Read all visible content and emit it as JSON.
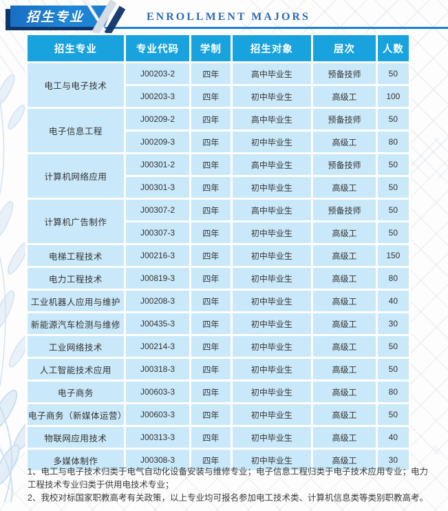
{
  "header": {
    "title": "招生专业",
    "subtitle": "ENROLLMENT MAJORS"
  },
  "table": {
    "columns": [
      "招生专业",
      "专业代码",
      "学制",
      "招生对象",
      "层次",
      "人数"
    ],
    "majors": [
      {
        "name": "电工与电子技术",
        "rows": [
          [
            "J00203-2",
            "四年",
            "高中毕业生",
            "预备技师",
            "50"
          ],
          [
            "J00203-3",
            "四年",
            "初中毕业生",
            "高级工",
            "100"
          ]
        ]
      },
      {
        "name": "电子信息工程",
        "rows": [
          [
            "J00209-2",
            "四年",
            "高中毕业生",
            "预备技师",
            "50"
          ],
          [
            "J00209-3",
            "四年",
            "初中毕业生",
            "高级工",
            "80"
          ]
        ]
      },
      {
        "name": "计算机网络应用",
        "rows": [
          [
            "J00301-2",
            "四年",
            "高中毕业生",
            "预备技师",
            "50"
          ],
          [
            "J00301-3",
            "四年",
            "初中毕业生",
            "高级工",
            "50"
          ]
        ]
      },
      {
        "name": "计算机广告制作",
        "rows": [
          [
            "J00307-2",
            "四年",
            "高中毕业生",
            "预备技师",
            "50"
          ],
          [
            "J00307-3",
            "四年",
            "初中毕业生",
            "高级工",
            "50"
          ]
        ]
      },
      {
        "name": "电梯工程技术",
        "rows": [
          [
            "J00216-3",
            "四年",
            "初中毕业生",
            "高级工",
            "150"
          ]
        ]
      },
      {
        "name": "电力工程技术",
        "rows": [
          [
            "J00819-3",
            "四年",
            "初中毕业生",
            "高级工",
            "80"
          ]
        ]
      },
      {
        "name": "工业机器人应用与维护",
        "rows": [
          [
            "J00208-3",
            "四年",
            "初中毕业生",
            "高级工",
            "40"
          ]
        ]
      },
      {
        "name": "新能源汽车检测与维修",
        "rows": [
          [
            "J00435-3",
            "四年",
            "初中毕业生",
            "高级工",
            "30"
          ]
        ]
      },
      {
        "name": "工业网络技术",
        "rows": [
          [
            "J00214-3",
            "四年",
            "初中毕业生",
            "高级工",
            "50"
          ]
        ]
      },
      {
        "name": "人工智能技术应用",
        "rows": [
          [
            "J00318-3",
            "四年",
            "初中毕业生",
            "高级工",
            "50"
          ]
        ]
      },
      {
        "name": "电子商务",
        "rows": [
          [
            "J00603-3",
            "四年",
            "初中毕业生",
            "高级工",
            "80"
          ]
        ]
      },
      {
        "name": "电子商务（新媒体运营）",
        "rows": [
          [
            "J00603-3",
            "四年",
            "初中毕业生",
            "高级工",
            "50"
          ]
        ]
      },
      {
        "name": "物联网应用技术",
        "rows": [
          [
            "J00313-3",
            "四年",
            "初中毕业生",
            "高级工",
            "40"
          ]
        ]
      },
      {
        "name": "多媒体制作",
        "rows": [
          [
            "J00308-3",
            "四年",
            "初中毕业生",
            "高级工",
            "30"
          ]
        ]
      }
    ]
  },
  "notes": [
    "1、电工与电子技术归类于电气自动化设备安装与维修专业；电子信息工程归类于电子技术应用专业；电力工程技术专业归类于供用电技术专业；",
    "2、我校对标国家职教高考有关政策，以上专业均可报名参加电工技术类、计算机信息类等类别职教高考。"
  ],
  "colors": {
    "accent_blue": "#1a7fd0",
    "header_bg": "#18a2de",
    "cell_bg": "#c9e8f9",
    "navy": "#0f3468",
    "subtitle_blue": "#2e6cb5",
    "text": "#333333"
  }
}
